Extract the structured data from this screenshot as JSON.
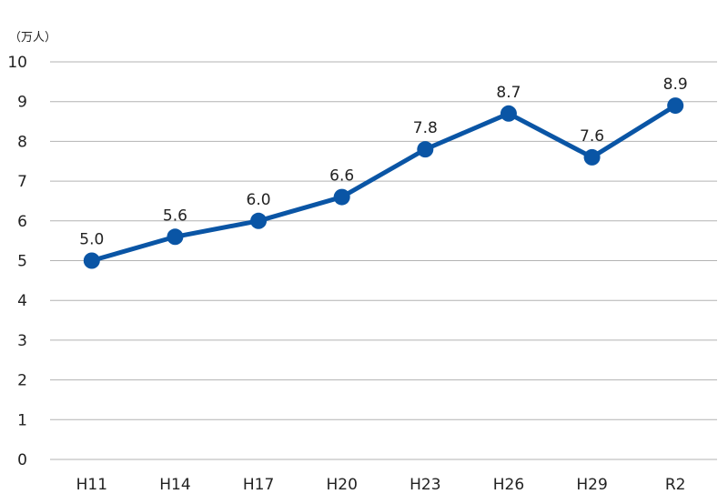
{
  "chart_data": {
    "type": "line",
    "title": "",
    "xlabel": "",
    "ylabel": "（万人）",
    "categories": [
      "H11",
      "H14",
      "H17",
      "H20",
      "H23",
      "H26",
      "H29",
      "R2"
    ],
    "series": [
      {
        "values": [
          5.0,
          5.6,
          6.0,
          6.6,
          7.8,
          8.7,
          7.6,
          8.9
        ],
        "value_labels": [
          "5.0",
          "5.6",
          "6.0",
          "6.6",
          "7.8",
          "8.7",
          "7.6",
          "8.9"
        ],
        "color": "#0a55a5"
      }
    ],
    "ylim": [
      0,
      10
    ],
    "yticks": [
      "0",
      "1",
      "2",
      "3",
      "4",
      "5",
      "6",
      "7",
      "8",
      "9",
      "10"
    ],
    "grid": true,
    "legend": "none"
  }
}
